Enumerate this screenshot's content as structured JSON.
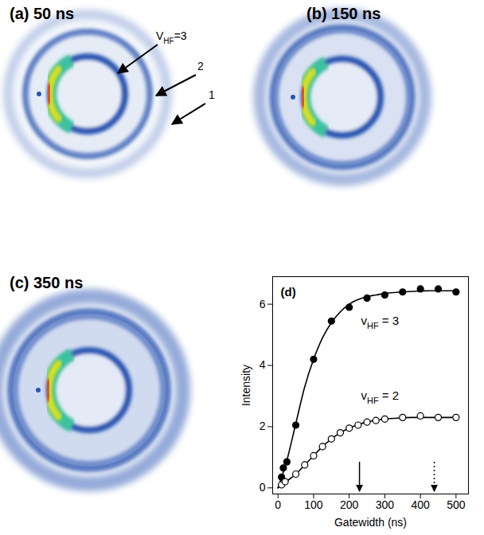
{
  "images": [
    {
      "label": "(a) 50 ns",
      "annotations": [
        {
          "text": "VHF=3",
          "subscript": "HF"
        },
        {
          "text": "2"
        },
        {
          "text": "1"
        }
      ]
    },
    {
      "label": "(b) 150 ns"
    },
    {
      "label": "(c) 350 ns"
    }
  ],
  "chart_data": {
    "type": "scatter",
    "title": "(d)",
    "x_label": "Gatewidth (ns)",
    "y_label": "Intensity",
    "xlim": [
      -15,
      535
    ],
    "xticks": [
      0,
      100,
      200,
      300,
      400,
      500
    ],
    "ylim": [
      -0.2,
      6.9
    ],
    "yticks": [
      0,
      2,
      4,
      6
    ],
    "series": [
      {
        "name": "vHF = 3",
        "subscript": "HF",
        "color": "#000000",
        "marker": "circle",
        "x": [
          10,
          15,
          25,
          50,
          100,
          150,
          200,
          250,
          300,
          350,
          400,
          450,
          500
        ],
        "values": [
          0.35,
          0.65,
          0.85,
          2.05,
          4.2,
          5.45,
          5.9,
          6.2,
          6.3,
          6.4,
          6.5,
          6.5,
          6.4
        ],
        "fit_x": [
          0,
          25,
          50,
          75,
          100,
          125,
          150,
          175,
          200,
          225,
          250,
          275,
          300,
          325,
          350,
          375,
          400,
          425,
          450,
          475,
          500
        ],
        "fit": [
          0,
          0.9,
          2.1,
          3.3,
          4.2,
          4.9,
          5.4,
          5.75,
          6.0,
          6.15,
          6.25,
          6.3,
          6.35,
          6.38,
          6.4,
          6.42,
          6.43,
          6.44,
          6.44,
          6.44,
          6.44
        ]
      },
      {
        "name": "vHF = 2",
        "subscript": "HF",
        "color": "#000000",
        "marker": "open_circle",
        "x": [
          10,
          20,
          50,
          75,
          100,
          125,
          150,
          175,
          200,
          225,
          250,
          275,
          300,
          350,
          400,
          450,
          500
        ],
        "values": [
          0.1,
          0.2,
          0.45,
          0.75,
          1.05,
          1.35,
          1.6,
          1.8,
          1.95,
          2.05,
          2.15,
          2.2,
          2.25,
          2.3,
          2.35,
          2.3,
          2.3
        ],
        "fit_x": [
          0,
          25,
          50,
          75,
          100,
          125,
          150,
          175,
          200,
          225,
          250,
          275,
          300,
          325,
          350,
          375,
          400,
          425,
          450,
          475,
          500
        ],
        "fit": [
          0,
          0.22,
          0.45,
          0.75,
          1.05,
          1.35,
          1.6,
          1.8,
          1.95,
          2.07,
          2.15,
          2.21,
          2.25,
          2.27,
          2.29,
          2.3,
          2.3,
          2.3,
          2.3,
          2.3,
          2.3
        ]
      }
    ],
    "arrows": [
      {
        "x": 230,
        "line_style": "solid"
      },
      {
        "x": 440,
        "line_style": "dotted"
      }
    ]
  }
}
